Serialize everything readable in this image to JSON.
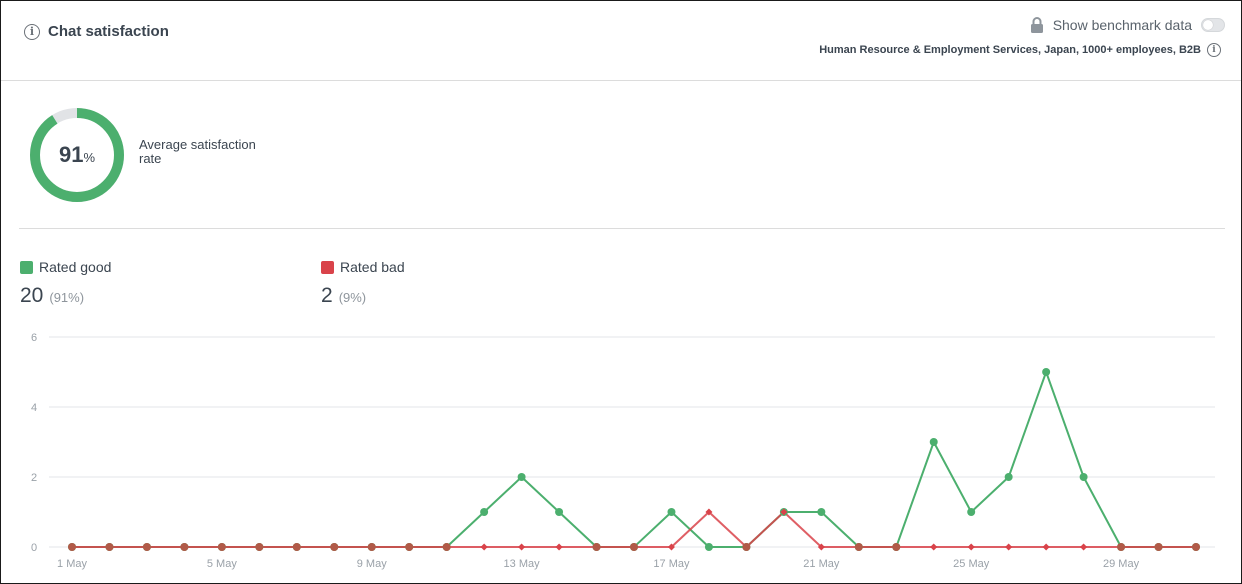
{
  "header": {
    "title": "Chat satisfaction",
    "benchmark_label": "Show benchmark data",
    "benchmark_toggle_on": false,
    "benchmark_segment": "Human Resource & Employment Services, Japan, 1000+ employees, B2B"
  },
  "summary": {
    "rate_value": "91",
    "rate_unit": "%",
    "rate_fraction": 0.91,
    "rate_label": "Average satisfaction rate"
  },
  "legend": {
    "good": {
      "label": "Rated good",
      "count": "20",
      "pct": "(91%)"
    },
    "bad": {
      "label": "Rated bad",
      "count": "2",
      "pct": "(9%)"
    }
  },
  "colors": {
    "good": "#4caf6e",
    "bad": "#d9434a",
    "gauge_track": "#e1e3e6",
    "grid": "#e3e5e8"
  },
  "icons": {
    "title": "info-icon",
    "benchmark": "lock-icon",
    "segment": "info-icon"
  },
  "chart_data": {
    "type": "line",
    "ylim": [
      0,
      6
    ],
    "y_ticks": [
      "0",
      "2",
      "4",
      "6"
    ],
    "x": [
      "1 May",
      "2 May",
      "3 May",
      "4 May",
      "5 May",
      "6 May",
      "7 May",
      "8 May",
      "9 May",
      "10 May",
      "11 May",
      "12 May",
      "13 May",
      "14 May",
      "15 May",
      "16 May",
      "17 May",
      "18 May",
      "19 May",
      "20 May",
      "21 May",
      "22 May",
      "23 May",
      "24 May",
      "25 May",
      "26 May",
      "27 May",
      "28 May",
      "29 May",
      "30 May",
      "31 May"
    ],
    "x_tick_labels": [
      "1 May",
      "5 May",
      "9 May",
      "13 May",
      "17 May",
      "21 May",
      "25 May",
      "29 May"
    ],
    "grid": true,
    "series": [
      {
        "name": "Rated good",
        "values": [
          0,
          0,
          0,
          0,
          0,
          0,
          0,
          0,
          0,
          0,
          0,
          1,
          2,
          1,
          0,
          0,
          1,
          0,
          0,
          1,
          1,
          0,
          0,
          3,
          1,
          2,
          5,
          2,
          0,
          0,
          0
        ]
      },
      {
        "name": "Rated bad",
        "values": [
          0,
          0,
          0,
          0,
          0,
          0,
          0,
          0,
          0,
          0,
          0,
          0,
          0,
          0,
          0,
          0,
          0,
          1,
          0,
          1,
          0,
          0,
          0,
          0,
          0,
          0,
          0,
          0,
          0,
          0,
          0
        ]
      }
    ]
  }
}
